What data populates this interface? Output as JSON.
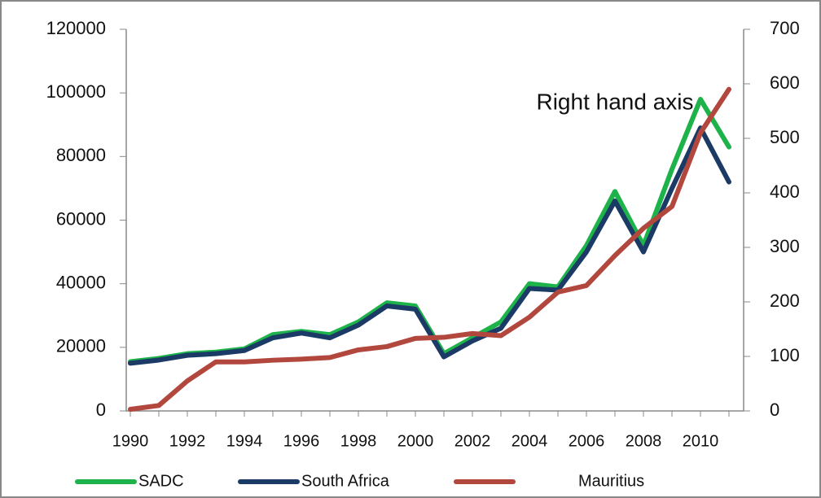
{
  "chart_data": {
    "type": "line",
    "annotation": "Right hand axis",
    "x": [
      1990,
      1991,
      1992,
      1993,
      1994,
      1995,
      1996,
      1997,
      1998,
      1999,
      2000,
      2001,
      2002,
      2003,
      2004,
      2005,
      2006,
      2007,
      2008,
      2009,
      2010,
      2011
    ],
    "xlim": [
      1990,
      2011
    ],
    "xticks": [
      1990,
      1992,
      1994,
      1996,
      1998,
      2000,
      2002,
      2004,
      2006,
      2008,
      2010
    ],
    "ylim": [
      0,
      120000
    ],
    "yticks": [
      0,
      20000,
      40000,
      60000,
      80000,
      100000,
      120000
    ],
    "y2lim": [
      0,
      700
    ],
    "y2ticks": [
      0,
      100,
      200,
      300,
      400,
      500,
      600,
      700
    ],
    "legend": "bottom",
    "series": [
      {
        "name": "SADC",
        "color": "#1db34a",
        "values": [
          15500,
          16500,
          18000,
          18500,
          19500,
          24000,
          25000,
          24000,
          28000,
          34000,
          33000,
          18000,
          23000,
          28000,
          40000,
          39000,
          52000,
          69000,
          52000,
          76000,
          98000,
          83000
        ]
      },
      {
        "name": "South Africa",
        "color": "#1b3a66",
        "values": [
          15000,
          16000,
          17500,
          18000,
          19000,
          23000,
          24500,
          23000,
          27000,
          33000,
          32000,
          17000,
          22000,
          26000,
          38500,
          38000,
          50000,
          66000,
          50000,
          70000,
          89000,
          72000
        ]
      },
      {
        "name": "Mauritius",
        "color": "#b2473e",
        "axis": "y2",
        "values": [
          3,
          10,
          55,
          90,
          90,
          93,
          95,
          98,
          112,
          118,
          133,
          135,
          142,
          138,
          172,
          218,
          230,
          285,
          335,
          375,
          510,
          590
        ]
      }
    ]
  }
}
